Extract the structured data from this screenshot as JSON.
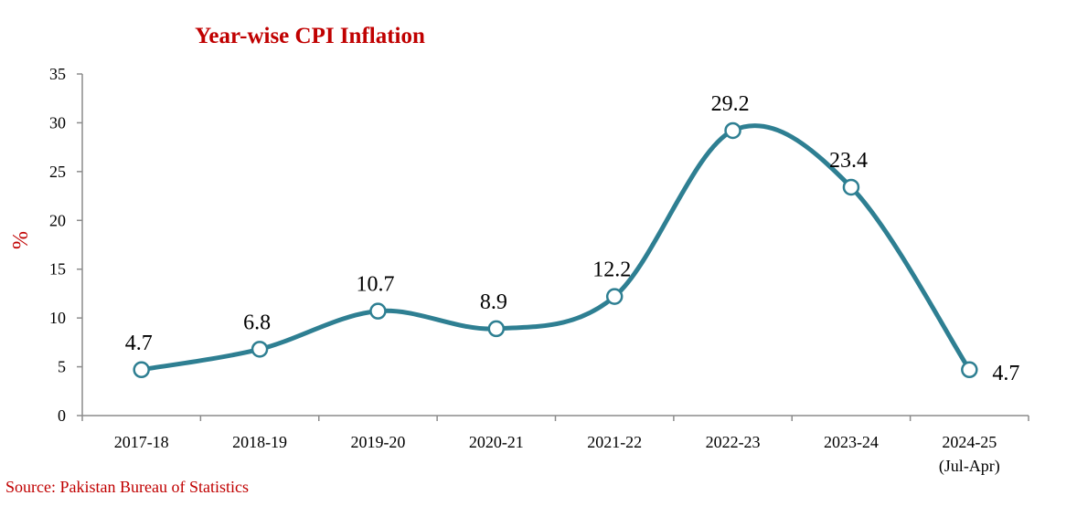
{
  "chart_data": {
    "type": "line",
    "title": "Year-wise CPI Inflation",
    "ylabel": "%",
    "xlabel": "",
    "categories": [
      "2017-18",
      "2018-19",
      "2019-20",
      "2020-21",
      "2021-22",
      "2022-23",
      "2023-24",
      "2024-25"
    ],
    "category_sublabels": [
      "",
      "",
      "",
      "",
      "",
      "",
      "",
      "(Jul-Apr)"
    ],
    "values": [
      4.7,
      6.8,
      10.7,
      8.9,
      12.2,
      29.2,
      23.4,
      4.7
    ],
    "data_labels": [
      "4.7",
      "6.8",
      "10.7",
      "8.9",
      "12.2",
      "29.2",
      "23.4",
      "4.7"
    ],
    "ylim": [
      0,
      35
    ],
    "yticks": [
      0,
      5,
      10,
      15,
      20,
      25,
      30,
      35
    ],
    "smooth": true,
    "grid": false,
    "line_color": "#2e7f92",
    "title_color": "#c00000"
  },
  "source": "Source: Pakistan Bureau of Statistics"
}
